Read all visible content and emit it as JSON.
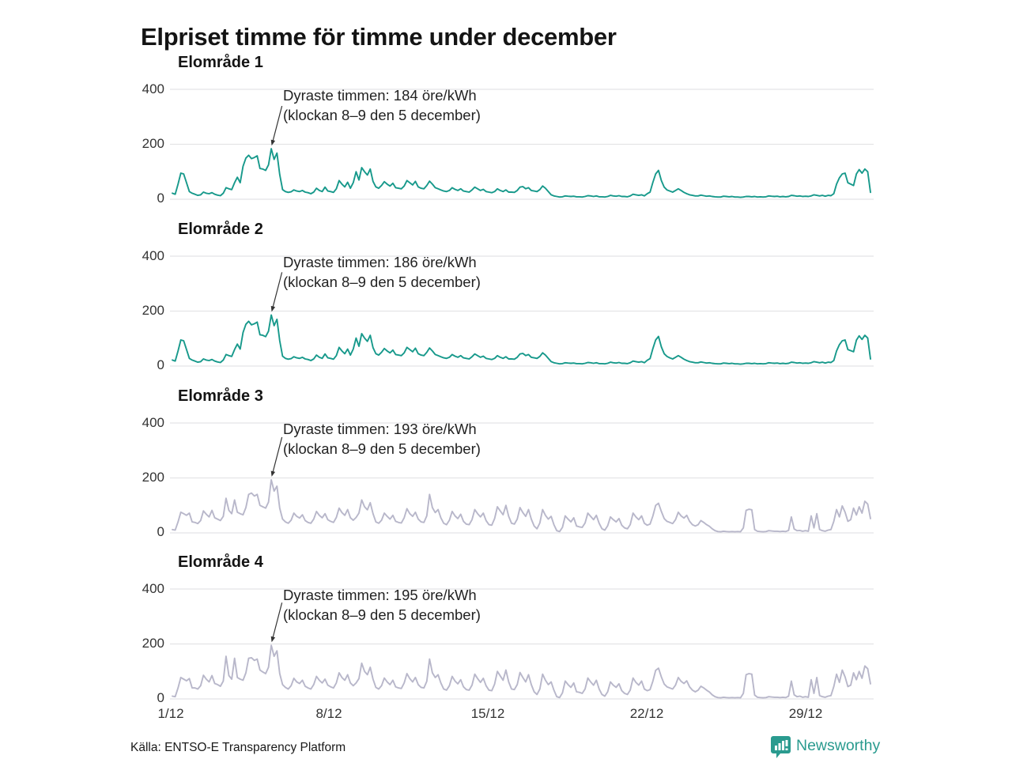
{
  "title": "Elpriset timme för timme under december",
  "source": "Källa: ENTSO-E Transparency Platform",
  "brand": {
    "name": "Newsworthy",
    "color": "#2a9b8f",
    "icon": "bar-chart-bubble-icon"
  },
  "colors": {
    "teal": "#17998b",
    "lavender": "#b8b7ca",
    "grid": "#e4e4e6",
    "arrow": "#333333"
  },
  "axes": {
    "y_ticks": [
      "400",
      "200",
      "0"
    ],
    "x_ticks": [
      "1/12",
      "8/12",
      "15/12",
      "22/12",
      "29/12"
    ],
    "ylim": [
      0,
      400
    ],
    "unit": "öre/kWh"
  },
  "chart_data": [
    {
      "type": "line",
      "title": "Elområde 1",
      "color": "#17998b",
      "unit": "öre/kWh",
      "resolution": "3h steps, 1–31 Dec",
      "annotation": {
        "line1": "Dyraste timmen: 184 öre/kWh",
        "line2": "(klockan 8–9 den 5 december)",
        "peak_value": 184
      },
      "values": [
        22,
        18,
        55,
        95,
        92,
        60,
        28,
        22,
        18,
        14,
        16,
        26,
        22,
        20,
        24,
        18,
        15,
        13,
        22,
        42,
        38,
        35,
        60,
        80,
        60,
        120,
        150,
        160,
        148,
        152,
        158,
        112,
        110,
        105,
        125,
        184,
        145,
        168,
        90,
        35,
        28,
        25,
        27,
        34,
        30,
        28,
        32,
        26,
        24,
        20,
        26,
        40,
        32,
        28,
        44,
        30,
        28,
        25,
        38,
        68,
        55,
        45,
        62,
        40,
        60,
        100,
        70,
        115,
        100,
        88,
        110,
        65,
        45,
        40,
        50,
        64,
        55,
        48,
        58,
        42,
        40,
        38,
        48,
        68,
        60,
        52,
        65,
        45,
        40,
        38,
        50,
        66,
        55,
        42,
        38,
        34,
        30,
        28,
        32,
        42,
        36,
        32,
        38,
        30,
        28,
        26,
        34,
        44,
        38,
        32,
        36,
        28,
        26,
        24,
        28,
        38,
        32,
        28,
        34,
        26,
        26,
        25,
        32,
        44,
        46,
        38,
        42,
        32,
        30,
        28,
        35,
        48,
        40,
        28,
        16,
        12,
        10,
        8,
        9,
        12,
        11,
        10,
        11,
        9,
        9,
        8,
        10,
        13,
        12,
        10,
        12,
        9,
        9,
        8,
        10,
        14,
        12,
        11,
        13,
        10,
        10,
        9,
        12,
        18,
        16,
        14,
        16,
        12,
        20,
        26,
        62,
        92,
        105,
        68,
        44,
        34,
        30,
        26,
        32,
        38,
        32,
        25,
        20,
        16,
        14,
        12,
        12,
        15,
        13,
        11,
        12,
        10,
        9,
        8,
        8,
        11,
        10,
        9,
        10,
        8,
        8,
        7,
        8,
        10,
        10,
        9,
        10,
        8,
        9,
        8,
        9,
        12,
        11,
        10,
        11,
        9,
        10,
        9,
        10,
        14,
        13,
        11,
        12,
        10,
        11,
        10,
        12,
        16,
        14,
        12,
        14,
        11,
        14,
        13,
        20,
        55,
        78,
        92,
        95,
        60,
        55,
        50,
        92,
        108,
        95,
        110,
        100,
        25
      ]
    },
    {
      "type": "line",
      "title": "Elområde 2",
      "color": "#17998b",
      "unit": "öre/kWh",
      "resolution": "3h steps, 1–31 Dec",
      "annotation": {
        "line1": "Dyraste timmen: 186 öre/kWh",
        "line2": "(klockan 8–9 den 5 december)",
        "peak_value": 186
      },
      "values": [
        22,
        18,
        55,
        95,
        92,
        60,
        28,
        22,
        18,
        14,
        16,
        26,
        22,
        20,
        24,
        18,
        15,
        13,
        22,
        42,
        38,
        35,
        60,
        80,
        62,
        122,
        152,
        163,
        150,
        154,
        160,
        114,
        112,
        107,
        127,
        186,
        147,
        170,
        92,
        36,
        28,
        25,
        27,
        34,
        30,
        28,
        32,
        26,
        24,
        20,
        26,
        40,
        32,
        28,
        44,
        30,
        28,
        25,
        38,
        68,
        55,
        45,
        62,
        40,
        62,
        102,
        72,
        118,
        102,
        90,
        112,
        67,
        45,
        40,
        50,
        64,
        55,
        48,
        58,
        42,
        40,
        38,
        48,
        68,
        60,
        52,
        65,
        45,
        40,
        38,
        50,
        66,
        55,
        42,
        38,
        34,
        30,
        28,
        32,
        42,
        36,
        32,
        38,
        30,
        28,
        26,
        34,
        44,
        38,
        32,
        36,
        28,
        26,
        24,
        28,
        38,
        32,
        28,
        34,
        26,
        26,
        25,
        32,
        44,
        46,
        38,
        42,
        32,
        30,
        28,
        35,
        48,
        40,
        28,
        16,
        12,
        10,
        8,
        9,
        12,
        11,
        10,
        11,
        9,
        9,
        8,
        10,
        13,
        12,
        10,
        12,
        9,
        9,
        8,
        10,
        14,
        12,
        11,
        13,
        10,
        10,
        9,
        12,
        18,
        16,
        14,
        16,
        12,
        21,
        27,
        64,
        95,
        108,
        70,
        45,
        35,
        30,
        26,
        32,
        38,
        32,
        25,
        20,
        16,
        14,
        12,
        12,
        15,
        13,
        11,
        12,
        10,
        9,
        8,
        8,
        11,
        10,
        9,
        10,
        8,
        8,
        7,
        8,
        10,
        10,
        9,
        10,
        8,
        9,
        8,
        9,
        12,
        11,
        10,
        11,
        9,
        10,
        9,
        10,
        14,
        13,
        11,
        12,
        10,
        11,
        10,
        12,
        16,
        14,
        12,
        14,
        11,
        14,
        13,
        20,
        55,
        78,
        92,
        95,
        60,
        56,
        52,
        94,
        110,
        97,
        112,
        102,
        26
      ]
    },
    {
      "type": "line",
      "title": "Elområde 3",
      "color": "#b8b7ca",
      "unit": "öre/kWh",
      "resolution": "3h steps, 1–31 Dec",
      "annotation": {
        "line1": "Dyraste timmen: 193 öre/kWh",
        "line2": "(klockan 8–9 den 5 december)",
        "peak_value": 193
      },
      "values": [
        12,
        10,
        40,
        75,
        70,
        64,
        72,
        40,
        38,
        34,
        45,
        80,
        68,
        58,
        82,
        55,
        50,
        45,
        60,
        126,
        82,
        70,
        120,
        75,
        70,
        66,
        92,
        140,
        145,
        134,
        140,
        100,
        95,
        90,
        112,
        193,
        152,
        170,
        90,
        50,
        40,
        35,
        46,
        72,
        60,
        54,
        66,
        45,
        38,
        35,
        50,
        78,
        64,
        55,
        70,
        48,
        42,
        38,
        56,
        90,
        74,
        64,
        85,
        55,
        46,
        56,
        72,
        120,
        95,
        84,
        110,
        70,
        40,
        35,
        46,
        72,
        60,
        50,
        64,
        42,
        38,
        36,
        55,
        88,
        70,
        60,
        75,
        50,
        40,
        38,
        62,
        140,
        92,
        74,
        85,
        55,
        35,
        30,
        46,
        78,
        62,
        52,
        68,
        42,
        32,
        30,
        48,
        85,
        70,
        58,
        72,
        45,
        30,
        28,
        52,
        95,
        80,
        66,
        100,
        60,
        35,
        32,
        50,
        92,
        74,
        60,
        85,
        50,
        25,
        15,
        36,
        85,
        64,
        50,
        60,
        30,
        8,
        5,
        20,
        62,
        50,
        40,
        55,
        25,
        22,
        20,
        36,
        72,
        60,
        48,
        64,
        35,
        15,
        10,
        26,
        58,
        48,
        40,
        52,
        28,
        18,
        15,
        30,
        72,
        58,
        48,
        62,
        35,
        28,
        32,
        62,
        100,
        108,
        78,
        52,
        42,
        38,
        34,
        48,
        75,
        62,
        54,
        64,
        42,
        30,
        25,
        30,
        45,
        38,
        30,
        24,
        15,
        8,
        5,
        4,
        6,
        5,
        4,
        5,
        4,
        5,
        4,
        18,
        82,
        86,
        84,
        12,
        6,
        5,
        4,
        5,
        8,
        7,
        6,
        6,
        5,
        6,
        5,
        9,
        58,
        14,
        8,
        9,
        6,
        8,
        6,
        62,
        18,
        70,
        12,
        8,
        6,
        10,
        12,
        42,
        85,
        58,
        98,
        75,
        42,
        48,
        90,
        65,
        95,
        72,
        115,
        105,
        52
      ]
    },
    {
      "type": "line",
      "title": "Elområde 4",
      "color": "#b8b7ca",
      "unit": "öre/kWh",
      "resolution": "3h steps, 1–31 Dec",
      "annotation": {
        "line1": "Dyraste timmen: 195 öre/kWh",
        "line2": "(klockan 8–9 den 5 december)",
        "peak_value": 195
      },
      "values": [
        10,
        8,
        40,
        78,
        72,
        66,
        74,
        40,
        40,
        36,
        48,
        86,
        72,
        62,
        85,
        56,
        52,
        46,
        65,
        155,
        85,
        72,
        148,
        78,
        72,
        68,
        95,
        148,
        150,
        140,
        145,
        105,
        98,
        92,
        115,
        195,
        155,
        175,
        92,
        52,
        42,
        36,
        48,
        75,
        62,
        56,
        68,
        46,
        40,
        36,
        52,
        82,
        68,
        58,
        72,
        50,
        44,
        40,
        58,
        95,
        78,
        68,
        88,
        58,
        48,
        58,
        74,
        130,
        100,
        88,
        115,
        72,
        42,
        36,
        48,
        76,
        62,
        52,
        68,
        44,
        40,
        38,
        58,
        92,
        74,
        62,
        78,
        52,
        42,
        40,
        64,
        145,
        95,
        78,
        88,
        58,
        36,
        32,
        48,
        82,
        65,
        55,
        70,
        44,
        34,
        32,
        50,
        90,
        74,
        60,
        75,
        48,
        32,
        30,
        54,
        100,
        84,
        68,
        105,
        62,
        36,
        34,
        52,
        96,
        78,
        62,
        88,
        52,
        26,
        16,
        36,
        90,
        68,
        52,
        62,
        32,
        8,
        5,
        22,
        65,
        52,
        42,
        58,
        26,
        24,
        20,
        36,
        76,
        62,
        50,
        68,
        36,
        16,
        10,
        26,
        62,
        50,
        42,
        55,
        30,
        20,
        16,
        32,
        76,
        60,
        50,
        65,
        36,
        30,
        34,
        65,
        104,
        112,
        80,
        54,
        44,
        40,
        36,
        50,
        78,
        64,
        56,
        66,
        44,
        32,
        26,
        32,
        46,
        40,
        32,
        25,
        15,
        8,
        5,
        4,
        6,
        5,
        4,
        5,
        4,
        5,
        4,
        20,
        88,
        92,
        90,
        14,
        6,
        5,
        4,
        5,
        8,
        7,
        6,
        6,
        5,
        6,
        5,
        10,
        65,
        15,
        8,
        10,
        6,
        8,
        6,
        70,
        20,
        78,
        12,
        8,
        6,
        10,
        12,
        45,
        90,
        60,
        105,
        80,
        45,
        50,
        95,
        70,
        100,
        75,
        120,
        110,
        55
      ]
    }
  ]
}
